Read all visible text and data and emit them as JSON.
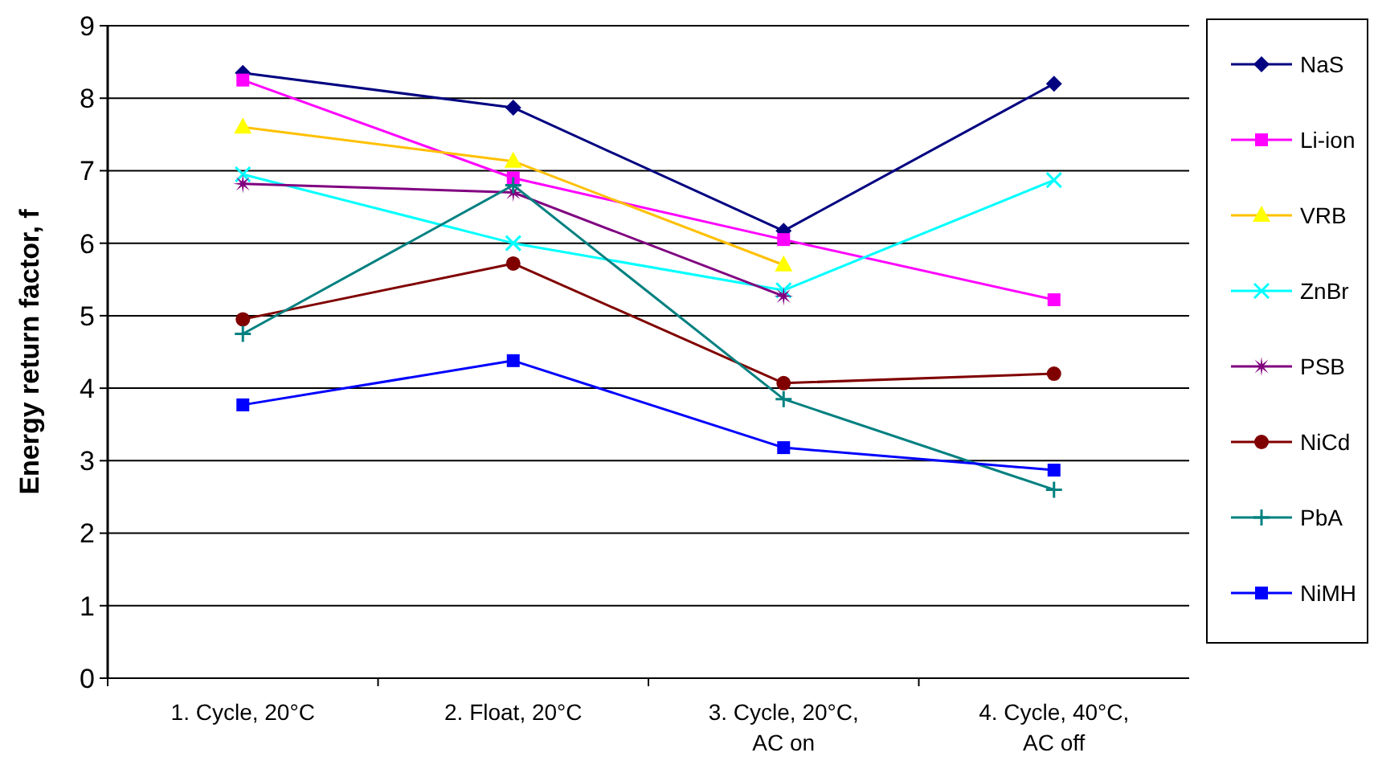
{
  "chart_data": {
    "type": "line",
    "ylabel": "Energy return factor, f",
    "categories": [
      "1. Cycle, 20°C",
      "2. Float, 20°C",
      "3. Cycle, 20°C,\nAC on",
      "4. Cycle, 40°C,\nAC off"
    ],
    "ylim": [
      0,
      9
    ],
    "yticks": [
      0,
      1,
      2,
      3,
      4,
      5,
      6,
      7,
      8,
      9
    ],
    "grid": "y",
    "legend": "right",
    "series": [
      {
        "name": "NaS",
        "color": "#000080",
        "marker": "diamond",
        "values": [
          8.35,
          7.87,
          6.17,
          8.2
        ]
      },
      {
        "name": "Li-ion",
        "color": "#ff00ff",
        "marker": "square",
        "values": [
          8.25,
          6.9,
          6.05,
          5.22
        ]
      },
      {
        "name": "VRB",
        "color": "#ffc000",
        "marker": "triangle",
        "values": [
          7.6,
          7.13,
          5.7,
          null
        ]
      },
      {
        "name": "ZnBr",
        "color": "#00ffff",
        "marker": "cross",
        "values": [
          6.95,
          6.0,
          5.35,
          6.87
        ]
      },
      {
        "name": "PSB",
        "color": "#800080",
        "marker": "star",
        "values": [
          6.82,
          6.7,
          5.27,
          null
        ]
      },
      {
        "name": "NiCd",
        "color": "#800000",
        "marker": "circle",
        "values": [
          4.95,
          5.72,
          4.07,
          4.2
        ]
      },
      {
        "name": "PbA",
        "color": "#008080",
        "marker": "plus",
        "values": [
          4.75,
          6.8,
          3.85,
          2.6
        ]
      },
      {
        "name": "NiMH",
        "color": "#0000ff",
        "marker": "square",
        "values": [
          3.77,
          4.38,
          3.18,
          2.87
        ]
      }
    ]
  }
}
